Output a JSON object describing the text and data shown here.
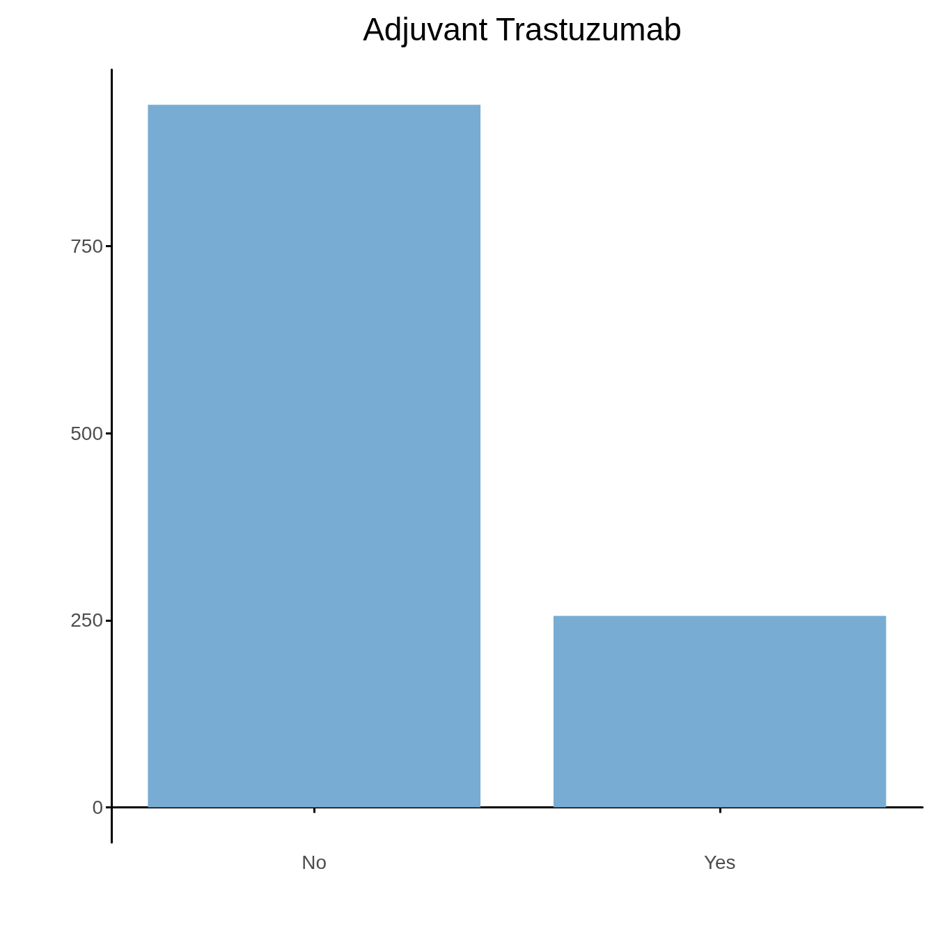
{
  "chart_data": {
    "type": "bar",
    "title": "Adjuvant Trastuzumab",
    "categories": [
      "No",
      "Yes"
    ],
    "values": [
      939,
      256
    ],
    "color": "#78acd2",
    "ylim": [
      -47,
      986
    ],
    "yticks": [
      0,
      250,
      500,
      750
    ],
    "grid": false
  }
}
